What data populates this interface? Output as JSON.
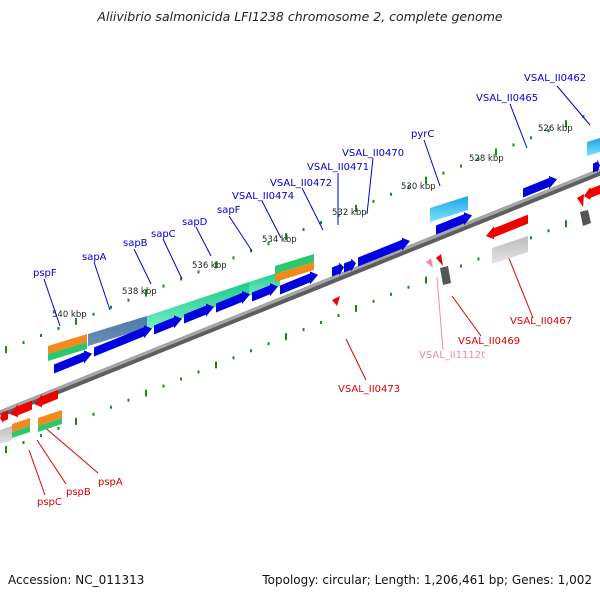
{
  "title": "Aliivibrio salmonicida LFI1238 chromosome 2, complete genome",
  "accession": "Accession: NC_011313",
  "topology": "Topology: circular; Length: 1,206,461 bp; Genes: 1,002",
  "colors": {
    "backbone": "#8c8c8c",
    "cds_forward": "#0000e0",
    "cds_reverse": "#ee0000",
    "ticks": "#1a8a1a",
    "label_forward": "#0000cc",
    "label_reverse": "#dd0000",
    "label_pseudo": "#ee88bb"
  },
  "scale_labels": [
    "526 kbp",
    "528 kbp",
    "530 kbp",
    "532 kbp",
    "534 kbp",
    "536 kbp",
    "538 kbp",
    "540 kbp"
  ],
  "gene_labels_forward": [
    "VSAL_II0462",
    "VSAL_II0465",
    "pyrC",
    "VSAL_II0470",
    "VSAL_II0471",
    "VSAL_II0472",
    "VSAL_II0474",
    "sapF",
    "sapD",
    "sapC",
    "sapB",
    "sapA",
    "pspF"
  ],
  "gene_labels_reverse": [
    "VSAL_II0467",
    "VSAL_II0469",
    "VSAL_II1112t",
    "VSAL_II0473",
    "pspA",
    "pspB",
    "pspC"
  ]
}
